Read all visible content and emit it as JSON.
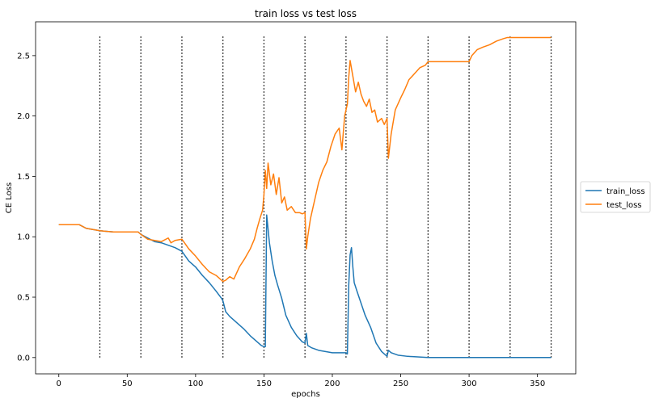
{
  "chart_data": {
    "type": "line",
    "title": "train loss vs test loss",
    "xlabel": "epochs",
    "ylabel": "CE Loss",
    "xlim": [
      -17,
      378
    ],
    "ylim": [
      -0.135,
      2.78
    ],
    "xticks": [
      0,
      50,
      100,
      150,
      200,
      250,
      300,
      350
    ],
    "yticks": [
      0.0,
      0.5,
      1.0,
      1.5,
      2.0,
      2.5
    ],
    "ytick_labels": [
      "0.0",
      "0.5",
      "1.0",
      "1.5",
      "2.0",
      "2.5"
    ],
    "grid": false,
    "legend": {
      "placement": "right-outside",
      "entries": [
        "train_loss",
        "test_loss"
      ]
    },
    "vlines": {
      "x": [
        30,
        60,
        90,
        120,
        150,
        180,
        210,
        240,
        270,
        300,
        330,
        360
      ],
      "ymin": 0.0,
      "ymax": 2.66,
      "style": "dotted",
      "color": "#000000"
    },
    "series": [
      {
        "name": "train_loss",
        "color": "#1f77b4",
        "points": [
          [
            0,
            1.1
          ],
          [
            15,
            1.1
          ],
          [
            20,
            1.07
          ],
          [
            30,
            1.05
          ],
          [
            40,
            1.04
          ],
          [
            50,
            1.04
          ],
          [
            58,
            1.04
          ],
          [
            60,
            1.02
          ],
          [
            65,
            0.99
          ],
          [
            70,
            0.96
          ],
          [
            75,
            0.95
          ],
          [
            80,
            0.93
          ],
          [
            85,
            0.91
          ],
          [
            90,
            0.88
          ],
          [
            95,
            0.8
          ],
          [
            100,
            0.75
          ],
          [
            105,
            0.68
          ],
          [
            110,
            0.62
          ],
          [
            115,
            0.55
          ],
          [
            119,
            0.49
          ],
          [
            120,
            0.47
          ],
          [
            122,
            0.38
          ],
          [
            125,
            0.34
          ],
          [
            130,
            0.29
          ],
          [
            135,
            0.24
          ],
          [
            140,
            0.18
          ],
          [
            145,
            0.13
          ],
          [
            148,
            0.1
          ],
          [
            150,
            0.09
          ],
          [
            151,
            0.09
          ],
          [
            152,
            1.18
          ],
          [
            154,
            0.95
          ],
          [
            156,
            0.8
          ],
          [
            158,
            0.68
          ],
          [
            160,
            0.6
          ],
          [
            163,
            0.49
          ],
          [
            166,
            0.35
          ],
          [
            170,
            0.25
          ],
          [
            174,
            0.18
          ],
          [
            178,
            0.13
          ],
          [
            180,
            0.12
          ],
          [
            181,
            0.2
          ],
          [
            182,
            0.1
          ],
          [
            185,
            0.08
          ],
          [
            190,
            0.06
          ],
          [
            195,
            0.05
          ],
          [
            200,
            0.04
          ],
          [
            205,
            0.04
          ],
          [
            208,
            0.04
          ],
          [
            210,
            0.04
          ],
          [
            211,
            0.03
          ],
          [
            212,
            0.6
          ],
          [
            213,
            0.85
          ],
          [
            214,
            0.91
          ],
          [
            215,
            0.75
          ],
          [
            216,
            0.62
          ],
          [
            218,
            0.55
          ],
          [
            221,
            0.45
          ],
          [
            224,
            0.35
          ],
          [
            228,
            0.25
          ],
          [
            232,
            0.12
          ],
          [
            236,
            0.05
          ],
          [
            239,
            0.02
          ],
          [
            240,
            0.01
          ],
          [
            241,
            0.06
          ],
          [
            243,
            0.04
          ],
          [
            248,
            0.02
          ],
          [
            255,
            0.01
          ],
          [
            270,
            0.0
          ],
          [
            300,
            0.0
          ],
          [
            330,
            0.0
          ],
          [
            360,
            0.0
          ]
        ]
      },
      {
        "name": "test_loss",
        "color": "#ff7f0e",
        "points": [
          [
            0,
            1.1
          ],
          [
            15,
            1.1
          ],
          [
            20,
            1.07
          ],
          [
            30,
            1.05
          ],
          [
            40,
            1.04
          ],
          [
            50,
            1.04
          ],
          [
            58,
            1.04
          ],
          [
            60,
            1.02
          ],
          [
            65,
            0.98
          ],
          [
            70,
            0.97
          ],
          [
            75,
            0.96
          ],
          [
            80,
            0.99
          ],
          [
            82,
            0.95
          ],
          [
            85,
            0.97
          ],
          [
            90,
            0.98
          ],
          [
            95,
            0.9
          ],
          [
            100,
            0.84
          ],
          [
            105,
            0.77
          ],
          [
            110,
            0.71
          ],
          [
            115,
            0.68
          ],
          [
            120,
            0.63
          ],
          [
            122,
            0.64
          ],
          [
            125,
            0.67
          ],
          [
            128,
            0.65
          ],
          [
            132,
            0.75
          ],
          [
            136,
            0.82
          ],
          [
            140,
            0.9
          ],
          [
            143,
            0.98
          ],
          [
            145,
            1.07
          ],
          [
            147,
            1.15
          ],
          [
            149,
            1.22
          ],
          [
            150,
            1.35
          ],
          [
            151,
            1.55
          ],
          [
            152,
            1.4
          ],
          [
            153,
            1.61
          ],
          [
            155,
            1.43
          ],
          [
            157,
            1.52
          ],
          [
            159,
            1.35
          ],
          [
            161,
            1.49
          ],
          [
            163,
            1.28
          ],
          [
            165,
            1.33
          ],
          [
            167,
            1.22
          ],
          [
            170,
            1.25
          ],
          [
            173,
            1.2
          ],
          [
            176,
            1.2
          ],
          [
            178,
            1.19
          ],
          [
            180,
            1.2
          ],
          [
            181,
            0.9
          ],
          [
            182,
            1.0
          ],
          [
            184,
            1.15
          ],
          [
            186,
            1.25
          ],
          [
            188,
            1.35
          ],
          [
            190,
            1.45
          ],
          [
            193,
            1.55
          ],
          [
            196,
            1.62
          ],
          [
            199,
            1.75
          ],
          [
            202,
            1.85
          ],
          [
            205,
            1.9
          ],
          [
            207,
            1.72
          ],
          [
            209,
            2.0
          ],
          [
            211,
            2.1
          ],
          [
            212,
            2.32
          ],
          [
            213,
            2.46
          ],
          [
            215,
            2.33
          ],
          [
            217,
            2.2
          ],
          [
            219,
            2.28
          ],
          [
            221,
            2.18
          ],
          [
            223,
            2.12
          ],
          [
            225,
            2.08
          ],
          [
            227,
            2.14
          ],
          [
            229,
            2.03
          ],
          [
            231,
            2.05
          ],
          [
            233,
            1.95
          ],
          [
            236,
            1.98
          ],
          [
            238,
            1.93
          ],
          [
            240,
            1.98
          ],
          [
            241,
            1.65
          ],
          [
            243,
            1.85
          ],
          [
            246,
            2.05
          ],
          [
            250,
            2.15
          ],
          [
            253,
            2.22
          ],
          [
            256,
            2.3
          ],
          [
            260,
            2.35
          ],
          [
            264,
            2.4
          ],
          [
            268,
            2.42
          ],
          [
            270,
            2.45
          ],
          [
            280,
            2.45
          ],
          [
            290,
            2.45
          ],
          [
            300,
            2.45
          ],
          [
            302,
            2.5
          ],
          [
            306,
            2.55
          ],
          [
            310,
            2.57
          ],
          [
            315,
            2.59
          ],
          [
            320,
            2.62
          ],
          [
            325,
            2.64
          ],
          [
            328,
            2.65
          ],
          [
            330,
            2.65
          ],
          [
            340,
            2.65
          ],
          [
            350,
            2.65
          ],
          [
            360,
            2.65
          ]
        ]
      }
    ]
  }
}
